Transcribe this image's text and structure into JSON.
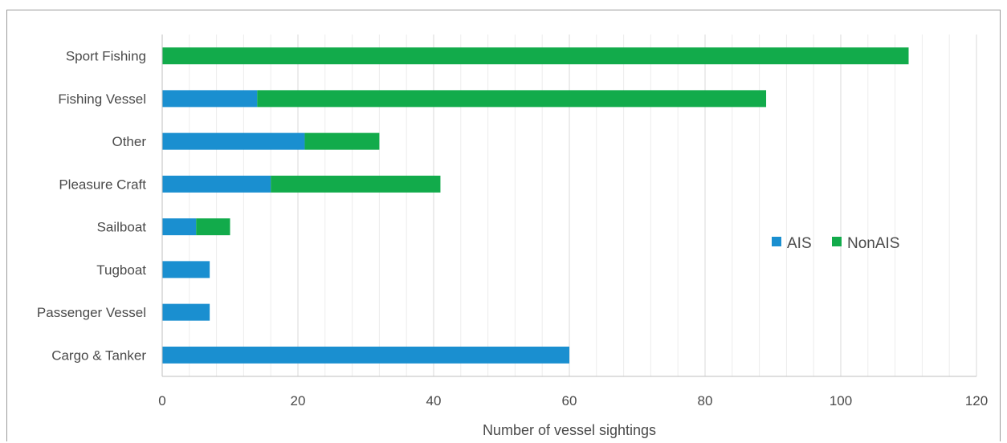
{
  "chart_data": {
    "type": "bar",
    "orientation": "horizontal",
    "stacked": true,
    "categories": [
      "Cargo & Tanker",
      "Passenger Vessel",
      "Tugboat",
      "Sailboat",
      "Pleasure Craft",
      "Other",
      "Fishing Vessel",
      "Sport Fishing"
    ],
    "series": [
      {
        "name": "AIS",
        "color": "#1a8fd0",
        "values": [
          60,
          7,
          7,
          5,
          16,
          21,
          14,
          0
        ]
      },
      {
        "name": "NonAIS",
        "color": "#12ab4b",
        "values": [
          0,
          0,
          0,
          5,
          25,
          11,
          75,
          110
        ]
      }
    ],
    "title": "",
    "xlabel": "Number of vessel sightings",
    "ylabel": "",
    "xlim": [
      0,
      120
    ],
    "xticks": [
      0,
      20,
      40,
      60,
      80,
      100,
      120
    ],
    "grid": "vertical",
    "legend_position": "right"
  }
}
